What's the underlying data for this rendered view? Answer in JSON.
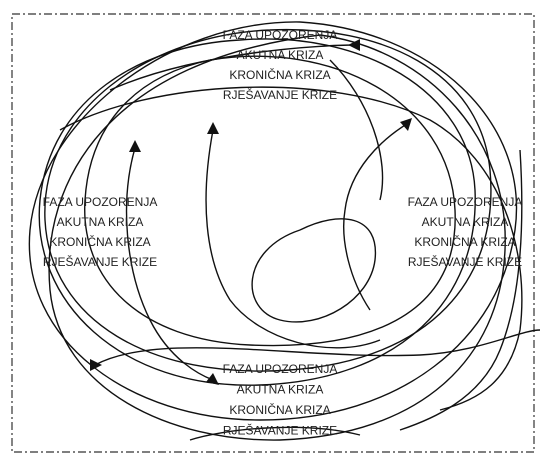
{
  "blocks": [
    {
      "lines": [
        "FAZA UPOZORENJA",
        "AKUTNA KRIZA",
        "KRONIČNA KRIZA",
        "RJEŠAVANJE KRIZE"
      ]
    },
    {
      "lines": [
        "FAZA UPOZORENJA",
        "AKUTNA KRIZA",
        "KRONIČNA KRIZA",
        "RJEŠAVANJE KRIZE"
      ]
    },
    {
      "lines": [
        "FAZA UPOZORENJA",
        "AKUTNA KRIZA",
        "KRONIČNA KRIZA",
        "RJEŠAVANJE KRIZE"
      ]
    },
    {
      "lines": [
        "FAZA UPOZORENJA",
        "AKUTNA KRIZA",
        "KRONIČNA KRIZA",
        "RJEŠAVANJE KRIZE"
      ]
    }
  ]
}
